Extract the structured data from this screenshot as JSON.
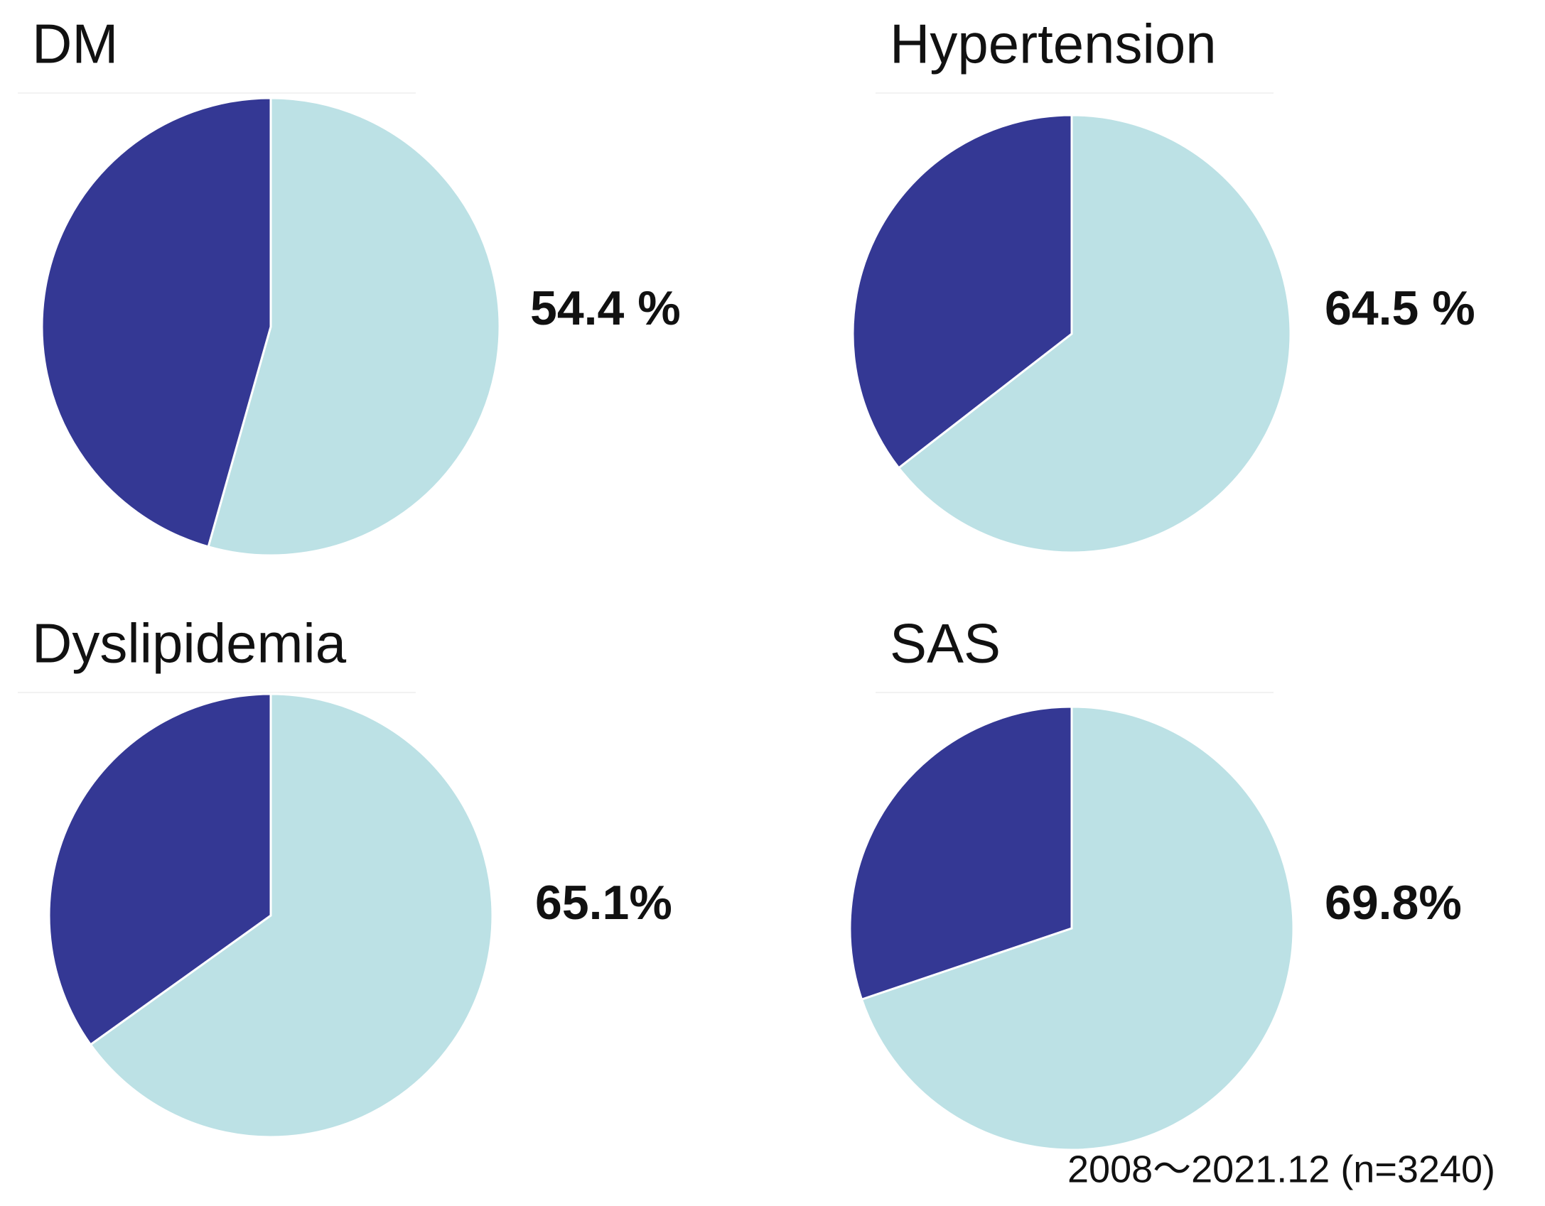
{
  "chart_data": [
    {
      "type": "pie",
      "title": "DM",
      "values": [
        54.4,
        45.6
      ],
      "value_labels": [
        "54.4 %",
        null
      ],
      "colors": [
        "#bce1e5",
        "#343894"
      ]
    },
    {
      "type": "pie",
      "title": "Hypertension",
      "values": [
        64.5,
        35.5
      ],
      "value_labels": [
        "64.5 %",
        null
      ],
      "colors": [
        "#bce1e5",
        "#343894"
      ]
    },
    {
      "type": "pie",
      "title": "Dyslipidemia",
      "values": [
        65.1,
        34.9
      ],
      "value_labels": [
        "65.1%",
        null
      ],
      "colors": [
        "#bce1e5",
        "#343894"
      ]
    },
    {
      "type": "pie",
      "title": "SAS",
      "values": [
        69.8,
        30.2
      ],
      "value_labels": [
        "69.8%",
        null
      ],
      "colors": [
        "#bce1e5",
        "#343894"
      ]
    }
  ],
  "footnote": "2008〜2021.12 (n=3240)"
}
